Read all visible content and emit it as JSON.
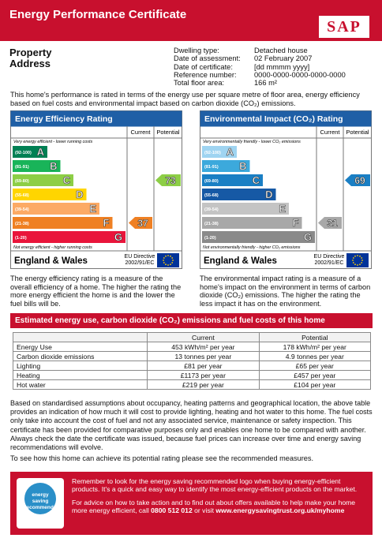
{
  "header": {
    "title": "Energy Performance Certificate",
    "logo": "SAP"
  },
  "property": {
    "label": "Property Address"
  },
  "details": [
    [
      "Dwelling type:",
      "Detached house"
    ],
    [
      "Date of assessment:",
      "02 February 2007"
    ],
    [
      "Date of certificate:",
      "[dd mmmm yyyy]"
    ],
    [
      "Reference number:",
      "0000-0000-0000-0000-0000"
    ],
    [
      "Total floor area:",
      "166 m²"
    ]
  ],
  "intro": "This home's performance is rated in terms of the energy use per square metre of floor area, energy efficiency based on fuel costs and environmental impact based on carbon dioxide (CO₂) emissions.",
  "ratings": [
    {
      "title": "Energy Efficiency Rating",
      "columns": [
        "Current",
        "Potential"
      ],
      "top_note": "Very energy efficient - lower running costs",
      "bottom_note": "Not energy efficient - higher running costs",
      "bands": [
        {
          "range": "(92-100)",
          "letter": "A",
          "color": "#008054"
        },
        {
          "range": "(81-91)",
          "letter": "B",
          "color": "#19b459"
        },
        {
          "range": "(69-80)",
          "letter": "C",
          "color": "#8dce46"
        },
        {
          "range": "(55-68)",
          "letter": "D",
          "color": "#ffd500"
        },
        {
          "range": "(39-54)",
          "letter": "E",
          "color": "#fcaa65"
        },
        {
          "range": "(21-38)",
          "letter": "F",
          "color": "#ef8023"
        },
        {
          "range": "(1-20)",
          "letter": "G",
          "color": "#e9153b"
        }
      ],
      "current": 37,
      "potential": 73,
      "region": "England & Wales",
      "directive": [
        "EU Directive",
        "2002/91/EC"
      ],
      "description": "The energy efficiency rating is a measure of the overall efficiency of a home. The higher the rating the more energy efficient the home is and the lower the fuel bills will be."
    },
    {
      "title": "Environmental Impact (CO₂) Rating",
      "columns": [
        "Current",
        "Potential"
      ],
      "top_note": "Very environmentally friendly - lower CO₂ emissions",
      "bottom_note": "Not environmentally friendly - higher CO₂ emissions",
      "bands": [
        {
          "range": "(92-100)",
          "letter": "A",
          "color": "#9fd4f1"
        },
        {
          "range": "(81-91)",
          "letter": "B",
          "color": "#3ca9dc"
        },
        {
          "range": "(69-80)",
          "letter": "C",
          "color": "#1a7fc4"
        },
        {
          "range": "(55-68)",
          "letter": "D",
          "color": "#1659a5"
        },
        {
          "range": "(39-54)",
          "letter": "E",
          "color": "#c4c4c4"
        },
        {
          "range": "(21-38)",
          "letter": "F",
          "color": "#a8a8a8"
        },
        {
          "range": "(1-20)",
          "letter": "G",
          "color": "#8a8a8a"
        }
      ],
      "current": 31,
      "potential": 69,
      "region": "England & Wales",
      "directive": [
        "EU Directive",
        "2002/91/EC"
      ],
      "description": "The environmental impact rating is a measure of a home's impact on the environment in terms of carbon dioxide (CO₂) emissions. The higher the rating the less impact it has on the environment."
    }
  ],
  "costs": {
    "title": "Estimated energy use, carbon dioxide (CO₂) emissions and fuel costs of this home",
    "header": [
      "Current",
      "Potential"
    ],
    "rows": [
      [
        "Energy Use",
        "453 kWh/m² per year",
        "178 kWh/m² per year"
      ],
      [
        "Carbon dioxide emissions",
        "13 tonnes per year",
        "4.9 tonnes per year"
      ],
      [
        "Lighting",
        "£81 per year",
        "£65 per year"
      ],
      [
        "Heating",
        "£1173 per year",
        "£457 per year"
      ],
      [
        "Hot water",
        "£219 per year",
        "£104 per year"
      ]
    ]
  },
  "notes": [
    "Based on standardised assumptions about occupancy, heating patterns and geographical location, the above table provides an indication of how much it will cost to provide lighting, heating and hot water to this home. The fuel costs only take into account the cost of fuel and not any associated service, maintenance or safety inspection. This certificate has been provided for comparative purposes only and enables one home to be compared with another. Always check the date the certificate was issued, because fuel prices can increase over time and energy saving recommendations will evolve.",
    "To see how this home can achieve its potential rating please see the recommended measures."
  ],
  "footer": {
    "logo": [
      "energy saving",
      "recommended"
    ],
    "paragraphs": [
      [
        "Remember to look for the energy saving recommended logo when buying energy-efficient products. It's a quick and easy way to identify the most energy-efficient products on the market."
      ],
      [
        "For advice on how to take action and to find out about offers available to help make your home more energy efficient, call ",
        "0800 512 012",
        " or visit ",
        "www.energysavingtrust.org.uk/myhome"
      ]
    ]
  }
}
